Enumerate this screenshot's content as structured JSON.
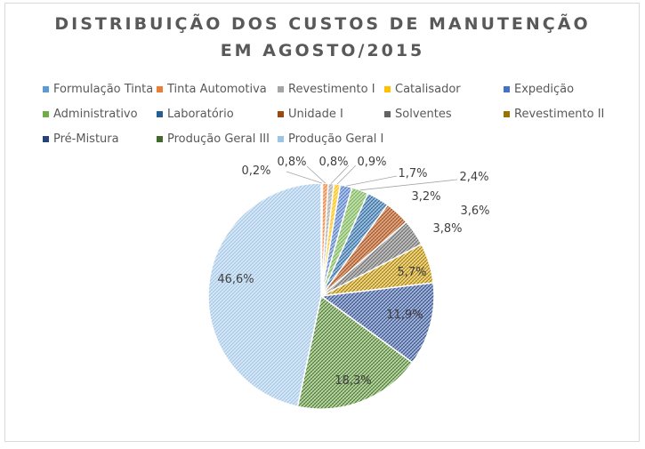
{
  "chart_data": {
    "type": "pie",
    "title": "DISTRIBUIÇÃO DOS CUSTOS DE MANUTENÇÃO EM AGOSTO/2015",
    "title_lines": [
      "DISTRIBUIÇÃO DOS CUSTOS DE MANUTENÇÃO",
      "EM AGOSTO/2015"
    ],
    "legend_position": "top",
    "slices": [
      {
        "name": "Formulação Tinta",
        "value": 0.2,
        "label": "0,2%",
        "color": "#5b9bd5"
      },
      {
        "name": "Tinta Automotiva",
        "value": 0.8,
        "label": "0,8%",
        "color": "#ed7d31"
      },
      {
        "name": "Revestimento I",
        "value": 0.8,
        "label": "0,8%",
        "color": "#a5a5a5"
      },
      {
        "name": "Catalisador",
        "value": 0.9,
        "label": "0,9%",
        "color": "#ffc000"
      },
      {
        "name": "Expedição",
        "value": 1.7,
        "label": "1,7%",
        "color": "#4472c4"
      },
      {
        "name": "Administrativo",
        "value": 2.4,
        "label": "2,4%",
        "color": "#70ad47"
      },
      {
        "name": "Laboratório",
        "value": 3.2,
        "label": "3,2%",
        "color": "#255e91"
      },
      {
        "name": "Unidade I",
        "value": 3.6,
        "label": "3,6%",
        "color": "#9e480e"
      },
      {
        "name": "Solventes",
        "value": 3.8,
        "label": "3,8%",
        "color": "#636363"
      },
      {
        "name": "Revestimento II",
        "value": 5.7,
        "label": "5,7%",
        "color": "#997300"
      },
      {
        "name": "Pré-Mistura",
        "value": 11.9,
        "label": "11,9%",
        "color": "#264478"
      },
      {
        "name": "Produção Geral III",
        "value": 18.3,
        "label": "18,3%",
        "color": "#43682b"
      },
      {
        "name": "Produção Geral I",
        "value": 46.6,
        "label": "46,6%",
        "color": "#9dc3e6"
      }
    ],
    "fill_colors": [
      "#c9dcf0",
      "#f6c3a0",
      "#d6d6d6",
      "#ffe28a",
      "#b4c7e7",
      "#c5e0b4",
      "#9fc1de",
      "#dea88a",
      "#c0c0c0",
      "#f2d98a",
      "#a8b8de",
      "#b9d9a3",
      "#d9e8f6"
    ]
  }
}
